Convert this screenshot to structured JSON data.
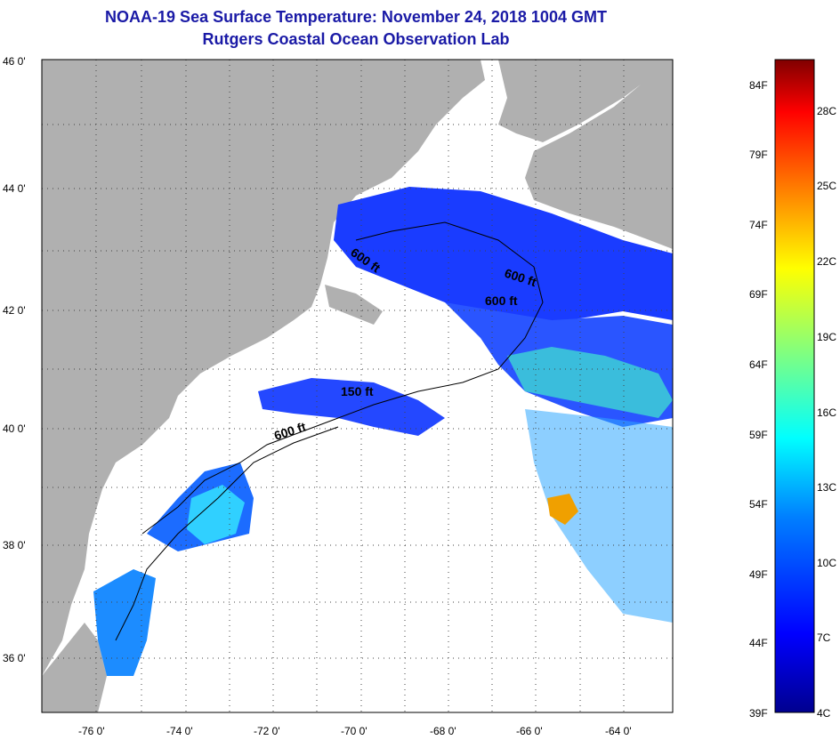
{
  "title": "NOAA-19 Sea Surface Temperature:  November 24, 2018 1004 GMT",
  "subtitle": "Rutgers Coastal Ocean Observation Lab",
  "map": {
    "lat_labels": [
      "46 0'",
      "44 0'",
      "42 0'",
      "40 0'",
      "38 0'",
      "36 0'"
    ],
    "lon_labels": [
      "-76 0'",
      "-74 0'",
      "-72 0'",
      "-70 0'",
      "-68 0'",
      "-66 0'",
      "-64 0'"
    ],
    "contour_labels": [
      "600 ft",
      "600 ft",
      "600 ft",
      "150 ft",
      "600 ft"
    ],
    "land_color": "#b0b0b0",
    "cloud_color": "#ffffff"
  },
  "colorbar": {
    "f_labels": [
      "84F",
      "79F",
      "74F",
      "69F",
      "64F",
      "59F",
      "54F",
      "49F",
      "44F",
      "39F"
    ],
    "c_labels": [
      "28C",
      "25C",
      "22C",
      "19C",
      "16C",
      "13C",
      "10C",
      "7C",
      "4C"
    ],
    "colors": [
      "#00008f",
      "#0000ff",
      "#0080ff",
      "#00ffff",
      "#80ff80",
      "#ffff00",
      "#ff8000",
      "#ff0000",
      "#800000"
    ]
  }
}
